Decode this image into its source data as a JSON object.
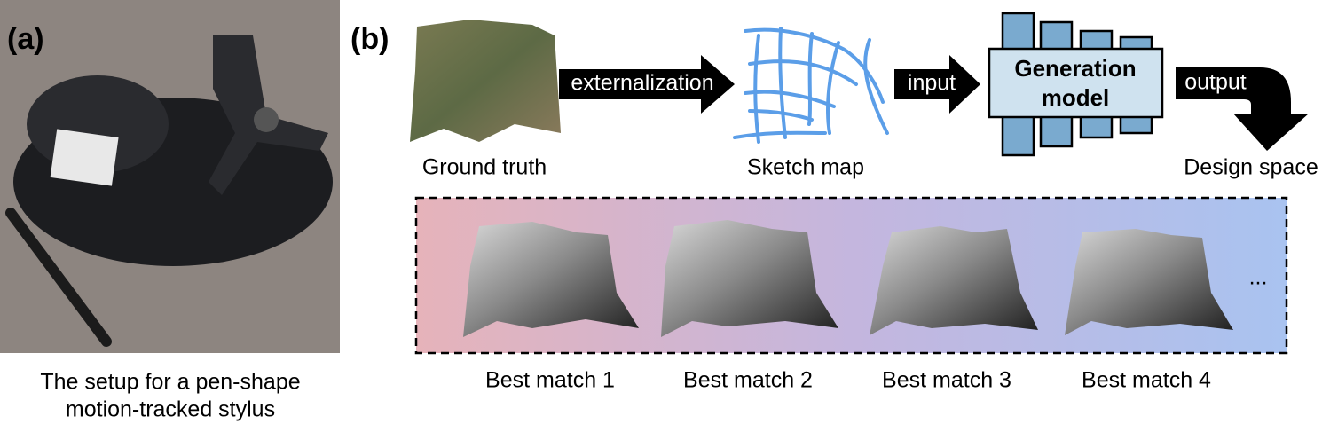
{
  "panel_a": {
    "label": "(a)",
    "caption": [
      "The setup for a pen-shape",
      "motion-tracked stylus"
    ]
  },
  "panel_b": {
    "label": "(b)",
    "stages": [
      "Ground truth",
      "Sketch map",
      "Design space"
    ],
    "arrows": [
      "externalization",
      "input",
      "output"
    ],
    "model": [
      "Generation",
      "model"
    ],
    "results": [
      "Best match 1",
      "Best match 2",
      "Best match 3",
      "Best match 4"
    ],
    "ellipsis": "..."
  }
}
